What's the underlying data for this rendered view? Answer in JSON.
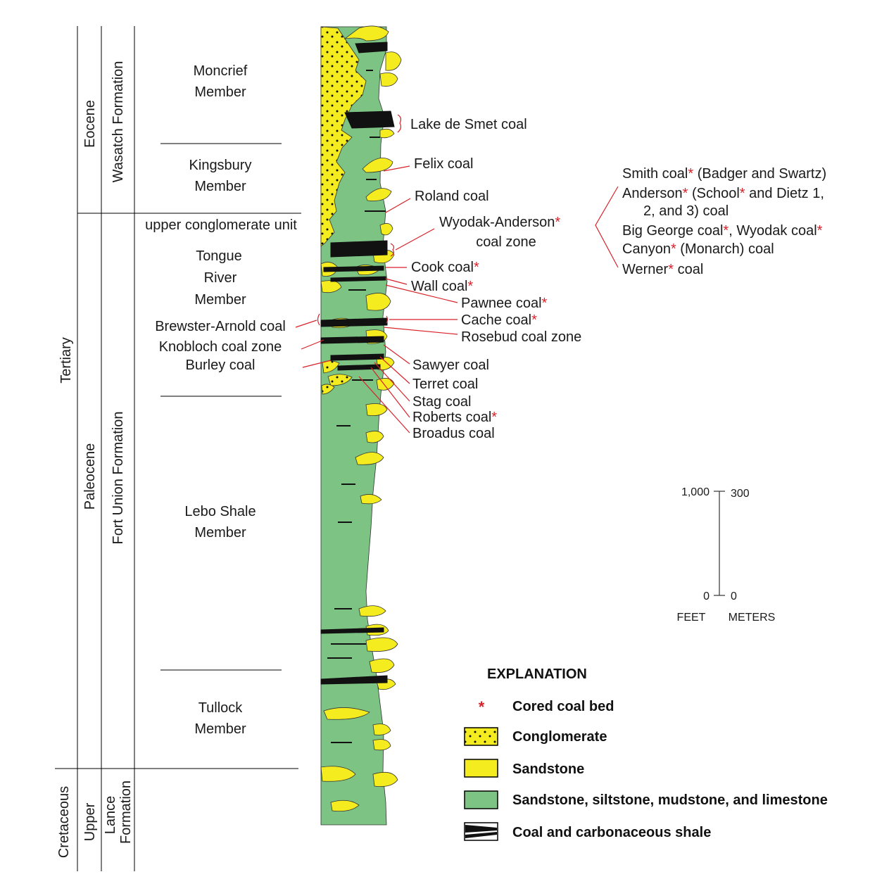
{
  "periods": {
    "tertiary": "Tertiary",
    "cretaceous": "Cretaceous"
  },
  "epochs": {
    "eocene": "Eocene",
    "paleocene": "Paleocene",
    "upper": "Upper"
  },
  "formations": {
    "wasatch": "Wasatch Formation",
    "fort_union": "Fort Union Formation",
    "lance": [
      "Lance",
      "Formation"
    ]
  },
  "members": {
    "moncrief": [
      "Moncrief",
      "Member"
    ],
    "kingsbury": [
      "Kingsbury",
      "Member"
    ],
    "upper_conglomerate": "upper conglomerate unit",
    "tongue_river": [
      "Tongue",
      "River",
      "Member"
    ],
    "lebo": [
      "Lebo Shale",
      "Member"
    ],
    "tullock": [
      "Tullock",
      "Member"
    ]
  },
  "coal_labels": {
    "lake_de_smet": "Lake de Smet coal",
    "felix": "Felix coal",
    "roland": "Roland coal",
    "wyodak": [
      "Wyodak-Anderson",
      "coal zone"
    ],
    "cook": "Cook coal",
    "wall": "Wall coal",
    "pawnee": "Pawnee coal",
    "cache": "Cache coal",
    "rosebud": "Rosebud coal zone",
    "sawyer": "Sawyer coal",
    "terret": "Terret coal",
    "stag": "Stag coal",
    "roberts": "Roberts coal",
    "broadus": "Broadus coal",
    "brewster_arnold": "Brewster-Arnold coal",
    "knobloch": "Knobloch coal zone",
    "burley": "Burley coal"
  },
  "wyodak_detail": {
    "smith_a": "Smith coal",
    "smith_b": " (Badger and Swartz)",
    "anderson_a": "Anderson",
    "anderson_b": " (School",
    "anderson_c": " and Dietz 1,",
    "anderson_d": "2, and 3) coal",
    "biggeorge_a": "Big George coal",
    "biggeorge_b": ", Wyodak coal",
    "canyon_a": "Canyon",
    "canyon_b": " (Monarch) coal",
    "werner_a": "Werner",
    "werner_b": " coal"
  },
  "asterisk": "*",
  "scale": {
    "feet_top": "1,000",
    "meters_top": "300",
    "feet_zero": "0",
    "meters_zero": "0",
    "feet_label": "FEET",
    "meters_label": "METERS"
  },
  "explanation": {
    "title": "EXPLANATION",
    "cored": "Cored coal bed",
    "conglomerate": "Conglomerate",
    "sandstone": "Sandstone",
    "mixed": "Sandstone, siltstone, mudstone, and limestone",
    "coal": "Coal and carbonaceous shale"
  },
  "colors": {
    "green": "#7dc383",
    "yellow": "#f4ec1e",
    "coal": "#111111",
    "red": "#d8222a"
  }
}
